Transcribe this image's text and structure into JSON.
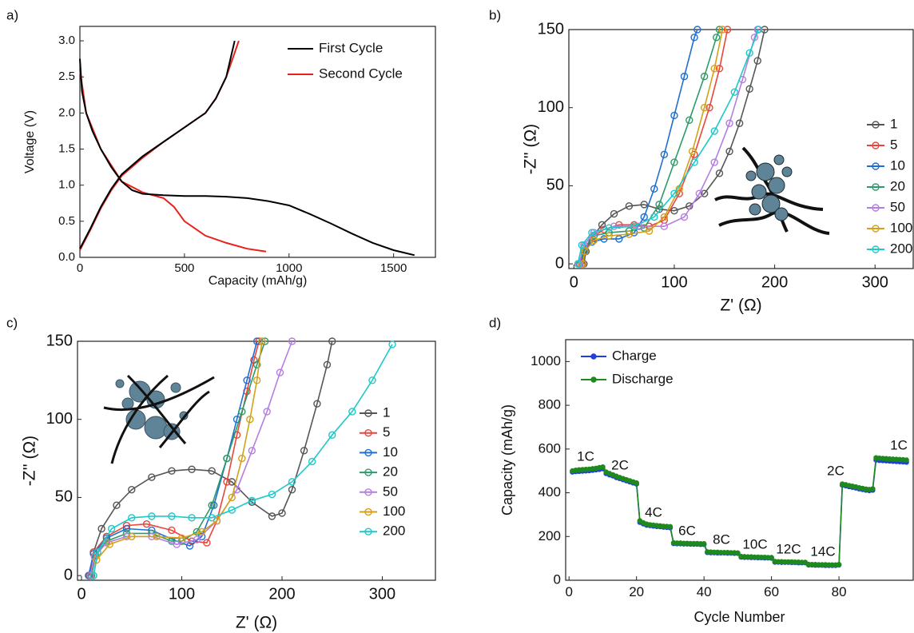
{
  "chart_data": [
    {
      "type": "line",
      "panel_label": "a)",
      "x_label": "Capacity (mAh/g)",
      "y_label": "Voltage (V)",
      "legend": "upper right",
      "xlim": [
        0,
        1700
      ],
      "ylim": [
        0,
        3.2
      ],
      "xticks": [
        0,
        500,
        1000,
        1500
      ],
      "yticks": [
        {
          "value": 0,
          "label": "0.0"
        },
        0.5,
        {
          "value": 1,
          "label": "1.0"
        },
        1.5,
        {
          "value": 2,
          "label": "2.0"
        },
        2.5,
        {
          "value": 3,
          "label": "3.0"
        }
      ],
      "series": [
        {
          "name": "First Cycle",
          "color": "#000000",
          "x": [
            0,
            10,
            30,
            60,
            100,
            150,
            200,
            250,
            300,
            400,
            500,
            600,
            700,
            800,
            900,
            1000,
            1100,
            1200,
            1300,
            1400,
            1500,
            1600,
            null,
            0,
            50,
            100,
            150,
            200,
            300,
            400,
            500,
            600,
            650,
            700,
            740
          ],
          "values": [
            2.75,
            2.3,
            2.0,
            1.75,
            1.5,
            1.25,
            1.05,
            0.93,
            0.88,
            0.86,
            0.85,
            0.85,
            0.84,
            0.82,
            0.78,
            0.72,
            0.6,
            0.47,
            0.33,
            0.2,
            0.1,
            0.03,
            null,
            0.12,
            0.4,
            0.7,
            0.95,
            1.15,
            1.4,
            1.6,
            1.8,
            2.0,
            2.2,
            2.5,
            3.0
          ]
        },
        {
          "name": "Second Cycle",
          "color": "#e8211a",
          "x": [
            0,
            30,
            100,
            200,
            300,
            400,
            450,
            500,
            600,
            700,
            800,
            890,
            null,
            0,
            50,
            100,
            150,
            200,
            300,
            400,
            500,
            600,
            650,
            700,
            760
          ],
          "values": [
            2.6,
            2.0,
            1.5,
            1.05,
            0.9,
            0.82,
            0.7,
            0.5,
            0.3,
            0.2,
            0.12,
            0.08,
            null,
            0.1,
            0.38,
            0.68,
            0.93,
            1.13,
            1.38,
            1.6,
            1.8,
            2.0,
            2.2,
            2.5,
            3.0
          ]
        }
      ]
    },
    {
      "type": "line",
      "panel_label": "b)",
      "x_label": "Z' (Ω)",
      "y_label": "-Z'' (Ω)",
      "legend": "center right",
      "markers": "open circle",
      "xlim": [
        -5,
        338
      ],
      "ylim": [
        -3,
        150
      ],
      "xticks": [
        0,
        100,
        200,
        300
      ],
      "yticks": [
        0,
        50,
        100,
        150
      ],
      "series": [
        {
          "name": "1",
          "color": "#555555",
          "x": [
            10,
            12,
            18,
            28,
            40,
            55,
            70,
            85,
            100,
            115,
            130,
            145,
            155,
            165,
            175,
            183,
            190
          ],
          "values": [
            0,
            8,
            17,
            25,
            32,
            37,
            38,
            35,
            34,
            37,
            45,
            58,
            72,
            90,
            112,
            130,
            150
          ]
        },
        {
          "name": "5",
          "color": "#e8463a",
          "x": [
            8,
            10,
            18,
            30,
            45,
            60,
            75,
            90,
            105,
            120,
            135,
            145,
            153
          ],
          "values": [
            0,
            8,
            17,
            22,
            25,
            25,
            24,
            28,
            45,
            70,
            100,
            125,
            150
          ]
        },
        {
          "name": "10",
          "color": "#1f6fd0",
          "x": [
            6,
            10,
            18,
            30,
            45,
            60,
            70,
            80,
            90,
            100,
            110,
            120,
            123
          ],
          "values": [
            0,
            8,
            14,
            16,
            16,
            20,
            30,
            48,
            70,
            95,
            120,
            145,
            150
          ]
        },
        {
          "name": "20",
          "color": "#2e9a6a",
          "x": [
            6,
            10,
            20,
            35,
            55,
            70,
            85,
            100,
            115,
            130,
            142,
            145
          ],
          "values": [
            0,
            10,
            18,
            20,
            21,
            23,
            38,
            65,
            92,
            120,
            145,
            150
          ]
        },
        {
          "name": "50",
          "color": "#b57de0",
          "x": [
            5,
            10,
            20,
            40,
            65,
            90,
            110,
            125,
            140,
            155,
            168,
            180,
            183
          ],
          "values": [
            0,
            12,
            20,
            24,
            24,
            24,
            30,
            45,
            65,
            90,
            118,
            145,
            150
          ]
        },
        {
          "name": "100",
          "color": "#d4a017",
          "x": [
            9,
            11,
            20,
            35,
            55,
            75,
            90,
            105,
            118,
            130,
            140,
            148
          ],
          "values": [
            0,
            8,
            15,
            18,
            19,
            21,
            30,
            48,
            72,
            100,
            125,
            150
          ]
        },
        {
          "name": "200",
          "color": "#1ec8c8",
          "x": [
            4,
            8,
            18,
            35,
            60,
            80,
            100,
            120,
            140,
            160,
            175,
            184
          ],
          "values": [
            0,
            12,
            20,
            23,
            24,
            30,
            45,
            65,
            85,
            110,
            135,
            150
          ]
        }
      ]
    },
    {
      "type": "line",
      "panel_label": "c)",
      "x_label": "Z' (Ω)",
      "y_label": "-Z'' (Ω)",
      "legend": "center right",
      "markers": "open circle",
      "xlim": [
        -4,
        353
      ],
      "ylim": [
        -3,
        150
      ],
      "xticks": [
        0,
        100,
        200,
        300
      ],
      "yticks": [
        0,
        50,
        100,
        150
      ],
      "series": [
        {
          "name": "1",
          "color": "#555555",
          "x": [
            8,
            12,
            20,
            35,
            50,
            70,
            90,
            110,
            130,
            150,
            170,
            190,
            200,
            210,
            222,
            235,
            245,
            250
          ],
          "values": [
            0,
            15,
            30,
            45,
            55,
            63,
            67,
            68,
            67,
            60,
            47,
            38,
            40,
            55,
            80,
            110,
            135,
            150
          ]
        },
        {
          "name": "5",
          "color": "#e8463a",
          "x": [
            8,
            12,
            25,
            45,
            65,
            90,
            110,
            125,
            135,
            145,
            155,
            165,
            172,
            177
          ],
          "values": [
            0,
            15,
            25,
            32,
            33,
            29,
            22,
            21,
            35,
            60,
            90,
            118,
            138,
            150
          ]
        },
        {
          "name": "10",
          "color": "#1f6fd0",
          "x": [
            7,
            12,
            25,
            45,
            70,
            95,
            108,
            120,
            132,
            145,
            155,
            165,
            175
          ],
          "values": [
            0,
            14,
            24,
            30,
            29,
            22,
            19,
            25,
            45,
            75,
            100,
            125,
            150
          ]
        },
        {
          "name": "20",
          "color": "#2e9a6a",
          "x": [
            10,
            14,
            25,
            45,
            70,
            90,
            100,
            115,
            130,
            145,
            160,
            175,
            183
          ],
          "values": [
            0,
            13,
            22,
            27,
            27,
            22,
            22,
            28,
            45,
            75,
            105,
            135,
            150
          ]
        },
        {
          "name": "50",
          "color": "#b57de0",
          "x": [
            9,
            13,
            25,
            45,
            70,
            95,
            115,
            135,
            155,
            170,
            185,
            198,
            210
          ],
          "values": [
            0,
            12,
            21,
            25,
            25,
            20,
            23,
            35,
            55,
            80,
            105,
            130,
            150
          ]
        },
        {
          "name": "100",
          "color": "#d4a017",
          "x": [
            12,
            15,
            28,
            50,
            75,
            100,
            120,
            135,
            150,
            160,
            168,
            175,
            180
          ],
          "values": [
            0,
            10,
            20,
            25,
            25,
            24,
            28,
            35,
            50,
            75,
            100,
            125,
            150
          ]
        },
        {
          "name": "200",
          "color": "#1ec8c8",
          "x": [
            12,
            16,
            30,
            50,
            70,
            90,
            110,
            130,
            150,
            170,
            190,
            210,
            230,
            250,
            270,
            290,
            310
          ],
          "values": [
            0,
            15,
            30,
            37,
            38,
            38,
            37,
            37,
            42,
            48,
            52,
            60,
            73,
            90,
            105,
            125,
            148
          ]
        }
      ]
    },
    {
      "type": "line",
      "panel_label": "d)",
      "x_label": "Cycle Number",
      "y_label": "Capacity (mAh/g)",
      "legend": "upper left",
      "markers": "filled circle",
      "xlim": [
        -1,
        102
      ],
      "ylim": [
        0,
        1100
      ],
      "xticks": [
        0,
        20,
        40,
        60,
        80
      ],
      "yticks": [
        0,
        200,
        400,
        600,
        800,
        1000
      ],
      "annotations": [
        "1C",
        "2C",
        "4C",
        "6C",
        "8C",
        "10C",
        "12C",
        "14C",
        "2C",
        "1C"
      ],
      "x": [
        1,
        2,
        3,
        4,
        5,
        6,
        7,
        8,
        9,
        10,
        11,
        12,
        13,
        14,
        15,
        16,
        17,
        18,
        19,
        20,
        21,
        22,
        23,
        24,
        25,
        26,
        27,
        28,
        29,
        30,
        31,
        32,
        33,
        34,
        35,
        36,
        37,
        38,
        39,
        40,
        41,
        42,
        43,
        44,
        45,
        46,
        47,
        48,
        49,
        50,
        51,
        52,
        53,
        54,
        55,
        56,
        57,
        58,
        59,
        60,
        61,
        62,
        63,
        64,
        65,
        66,
        67,
        68,
        69,
        70,
        71,
        72,
        73,
        74,
        75,
        76,
        77,
        78,
        79,
        80,
        81,
        82,
        83,
        84,
        85,
        86,
        87,
        88,
        89,
        90,
        91,
        92,
        93,
        94,
        95,
        96,
        97,
        98,
        99,
        100
      ],
      "series": [
        {
          "name": "Charge",
          "color": "#1f3fe0",
          "values": [
            495,
            497,
            498,
            499,
            500,
            501,
            503,
            505,
            507,
            510,
            488,
            482,
            477,
            470,
            465,
            460,
            455,
            450,
            445,
            440,
            265,
            258,
            252,
            250,
            248,
            246,
            245,
            243,
            242,
            240,
            168,
            167,
            167,
            166,
            166,
            165,
            165,
            165,
            164,
            164,
            127,
            126,
            126,
            125,
            125,
            125,
            124,
            124,
            123,
            123,
            106,
            105,
            105,
            104,
            104,
            103,
            103,
            102,
            102,
            101,
            83,
            83,
            82,
            82,
            82,
            81,
            81,
            80,
            80,
            80,
            70,
            70,
            69,
            69,
            69,
            68,
            68,
            68,
            68,
            70,
            435,
            432,
            428,
            425,
            422,
            418,
            415,
            412,
            410,
            412,
            550,
            548,
            547,
            546,
            545,
            544,
            543,
            542,
            541,
            540
          ]
        },
        {
          "name": "Discharge",
          "color": "#1e8a1e",
          "values": [
            500,
            503,
            505,
            506,
            507,
            508,
            510,
            512,
            515,
            518,
            495,
            488,
            482,
            476,
            470,
            465,
            460,
            455,
            450,
            445,
            272,
            263,
            257,
            254,
            252,
            250,
            249,
            247,
            246,
            245,
            171,
            170,
            170,
            169,
            169,
            168,
            168,
            168,
            167,
            167,
            130,
            129,
            128,
            128,
            127,
            127,
            127,
            126,
            126,
            125,
            109,
            108,
            107,
            107,
            106,
            106,
            105,
            105,
            104,
            104,
            86,
            85,
            85,
            84,
            84,
            84,
            83,
            83,
            82,
            82,
            73,
            72,
            72,
            71,
            71,
            71,
            70,
            70,
            70,
            72,
            440,
            437,
            433,
            430,
            427,
            423,
            420,
            417,
            415,
            418,
            560,
            558,
            557,
            556,
            555,
            554,
            553,
            552,
            551,
            550
          ]
        }
      ]
    }
  ]
}
